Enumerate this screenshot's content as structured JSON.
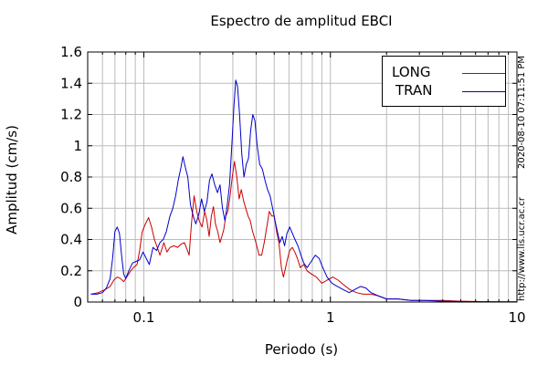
{
  "chart_data": {
    "type": "line",
    "title": "Espectro de amplitud EBCI",
    "xlabel": "Periodo (s)",
    "ylabel": "Amplitud (cm/s)",
    "xscale": "log",
    "xlim": [
      0.05,
      10
    ],
    "ylim": [
      0,
      1.6
    ],
    "xticks": [
      {
        "value": 0.1,
        "label": "0.1"
      },
      {
        "value": 1,
        "label": "1"
      },
      {
        "value": 10,
        "label": "10"
      }
    ],
    "yticks": [
      {
        "value": 0,
        "label": "0"
      },
      {
        "value": 0.2,
        "label": "0.2"
      },
      {
        "value": 0.4,
        "label": "0.4"
      },
      {
        "value": 0.6,
        "label": "0.6"
      },
      {
        "value": 0.8,
        "label": "0.8"
      },
      {
        "value": 1,
        "label": "1"
      },
      {
        "value": 1.2,
        "label": "1.2"
      },
      {
        "value": 1.4,
        "label": "1.4"
      },
      {
        "value": 1.6,
        "label": "1.6"
      }
    ],
    "grid": true,
    "legend_position": "top-right",
    "series": [
      {
        "name": "LONG",
        "color": "#cc0000",
        "points": [
          [
            0.052,
            0.05
          ],
          [
            0.057,
            0.06
          ],
          [
            0.062,
            0.08
          ],
          [
            0.066,
            0.1
          ],
          [
            0.069,
            0.14
          ],
          [
            0.072,
            0.16
          ],
          [
            0.075,
            0.15
          ],
          [
            0.078,
            0.13
          ],
          [
            0.081,
            0.16
          ],
          [
            0.085,
            0.2
          ],
          [
            0.088,
            0.22
          ],
          [
            0.092,
            0.24
          ],
          [
            0.095,
            0.33
          ],
          [
            0.098,
            0.45
          ],
          [
            0.102,
            0.5
          ],
          [
            0.106,
            0.54
          ],
          [
            0.11,
            0.48
          ],
          [
            0.114,
            0.4
          ],
          [
            0.118,
            0.35
          ],
          [
            0.122,
            0.3
          ],
          [
            0.128,
            0.38
          ],
          [
            0.133,
            0.32
          ],
          [
            0.138,
            0.35
          ],
          [
            0.145,
            0.36
          ],
          [
            0.152,
            0.35
          ],
          [
            0.158,
            0.37
          ],
          [
            0.165,
            0.38
          ],
          [
            0.17,
            0.34
          ],
          [
            0.175,
            0.3
          ],
          [
            0.18,
            0.5
          ],
          [
            0.186,
            0.68
          ],
          [
            0.192,
            0.58
          ],
          [
            0.198,
            0.52
          ],
          [
            0.205,
            0.48
          ],
          [
            0.212,
            0.58
          ],
          [
            0.218,
            0.52
          ],
          [
            0.224,
            0.42
          ],
          [
            0.23,
            0.55
          ],
          [
            0.236,
            0.61
          ],
          [
            0.242,
            0.5
          ],
          [
            0.249,
            0.45
          ],
          [
            0.256,
            0.38
          ],
          [
            0.262,
            0.42
          ],
          [
            0.268,
            0.46
          ],
          [
            0.275,
            0.55
          ],
          [
            0.282,
            0.58
          ],
          [
            0.29,
            0.68
          ],
          [
            0.298,
            0.8
          ],
          [
            0.306,
            0.9
          ],
          [
            0.315,
            0.8
          ],
          [
            0.324,
            0.66
          ],
          [
            0.333,
            0.72
          ],
          [
            0.342,
            0.65
          ],
          [
            0.352,
            0.6
          ],
          [
            0.362,
            0.55
          ],
          [
            0.372,
            0.52
          ],
          [
            0.383,
            0.45
          ],
          [
            0.395,
            0.4
          ],
          [
            0.405,
            0.35
          ],
          [
            0.415,
            0.3
          ],
          [
            0.428,
            0.3
          ],
          [
            0.442,
            0.38
          ],
          [
            0.456,
            0.48
          ],
          [
            0.47,
            0.58
          ],
          [
            0.485,
            0.55
          ],
          [
            0.5,
            0.55
          ],
          [
            0.515,
            0.45
          ],
          [
            0.53,
            0.38
          ],
          [
            0.546,
            0.22
          ],
          [
            0.56,
            0.16
          ],
          [
            0.575,
            0.22
          ],
          [
            0.59,
            0.28
          ],
          [
            0.605,
            0.33
          ],
          [
            0.625,
            0.35
          ],
          [
            0.645,
            0.32
          ],
          [
            0.665,
            0.28
          ],
          [
            0.69,
            0.22
          ],
          [
            0.72,
            0.24
          ],
          [
            0.75,
            0.2
          ],
          [
            0.79,
            0.18
          ],
          [
            0.84,
            0.16
          ],
          [
            0.9,
            0.12
          ],
          [
            0.96,
            0.14
          ],
          [
            1.03,
            0.16
          ],
          [
            1.1,
            0.14
          ],
          [
            1.18,
            0.11
          ],
          [
            1.27,
            0.08
          ],
          [
            1.38,
            0.06
          ],
          [
            1.5,
            0.05
          ],
          [
            1.65,
            0.05
          ],
          [
            1.8,
            0.04
          ],
          [
            2.0,
            0.02
          ],
          [
            2.3,
            0.02
          ],
          [
            2.7,
            0.01
          ],
          [
            3.2,
            0.01
          ],
          [
            4.0,
            0.01
          ],
          [
            5.0,
            0.005
          ],
          [
            6.5,
            0.003
          ],
          [
            8.0,
            0.002
          ],
          [
            10.0,
            0.001
          ]
        ]
      },
      {
        "name": "TRAN",
        "color": "#0000cc",
        "points": [
          [
            0.052,
            0.05
          ],
          [
            0.056,
            0.05
          ],
          [
            0.06,
            0.06
          ],
          [
            0.063,
            0.09
          ],
          [
            0.066,
            0.15
          ],
          [
            0.068,
            0.28
          ],
          [
            0.07,
            0.45
          ],
          [
            0.072,
            0.48
          ],
          [
            0.074,
            0.44
          ],
          [
            0.076,
            0.3
          ],
          [
            0.078,
            0.18
          ],
          [
            0.08,
            0.15
          ],
          [
            0.083,
            0.2
          ],
          [
            0.087,
            0.25
          ],
          [
            0.091,
            0.26
          ],
          [
            0.095,
            0.27
          ],
          [
            0.099,
            0.32
          ],
          [
            0.103,
            0.28
          ],
          [
            0.107,
            0.24
          ],
          [
            0.112,
            0.35
          ],
          [
            0.117,
            0.33
          ],
          [
            0.122,
            0.38
          ],
          [
            0.127,
            0.4
          ],
          [
            0.132,
            0.45
          ],
          [
            0.138,
            0.55
          ],
          [
            0.143,
            0.6
          ],
          [
            0.148,
            0.68
          ],
          [
            0.153,
            0.78
          ],
          [
            0.158,
            0.86
          ],
          [
            0.162,
            0.93
          ],
          [
            0.167,
            0.86
          ],
          [
            0.172,
            0.8
          ],
          [
            0.178,
            0.62
          ],
          [
            0.184,
            0.55
          ],
          [
            0.19,
            0.5
          ],
          [
            0.197,
            0.56
          ],
          [
            0.204,
            0.66
          ],
          [
            0.211,
            0.58
          ],
          [
            0.218,
            0.64
          ],
          [
            0.225,
            0.78
          ],
          [
            0.232,
            0.82
          ],
          [
            0.24,
            0.75
          ],
          [
            0.248,
            0.7
          ],
          [
            0.256,
            0.75
          ],
          [
            0.264,
            0.6
          ],
          [
            0.272,
            0.52
          ],
          [
            0.28,
            0.62
          ],
          [
            0.288,
            0.75
          ],
          [
            0.296,
            1.0
          ],
          [
            0.304,
            1.25
          ],
          [
            0.311,
            1.42
          ],
          [
            0.318,
            1.38
          ],
          [
            0.326,
            1.2
          ],
          [
            0.335,
            0.95
          ],
          [
            0.344,
            0.8
          ],
          [
            0.354,
            0.88
          ],
          [
            0.364,
            0.92
          ],
          [
            0.374,
            1.1
          ],
          [
            0.384,
            1.2
          ],
          [
            0.394,
            1.16
          ],
          [
            0.405,
            1.0
          ],
          [
            0.418,
            0.88
          ],
          [
            0.432,
            0.85
          ],
          [
            0.446,
            0.78
          ],
          [
            0.46,
            0.72
          ],
          [
            0.475,
            0.68
          ],
          [
            0.49,
            0.6
          ],
          [
            0.505,
            0.52
          ],
          [
            0.52,
            0.45
          ],
          [
            0.536,
            0.38
          ],
          [
            0.552,
            0.42
          ],
          [
            0.568,
            0.36
          ],
          [
            0.585,
            0.44
          ],
          [
            0.605,
            0.48
          ],
          [
            0.625,
            0.44
          ],
          [
            0.646,
            0.4
          ],
          [
            0.67,
            0.36
          ],
          [
            0.695,
            0.3
          ],
          [
            0.72,
            0.25
          ],
          [
            0.75,
            0.22
          ],
          [
            0.79,
            0.26
          ],
          [
            0.83,
            0.3
          ],
          [
            0.87,
            0.28
          ],
          [
            0.91,
            0.22
          ],
          [
            0.96,
            0.16
          ],
          [
            1.02,
            0.12
          ],
          [
            1.09,
            0.1
          ],
          [
            1.17,
            0.08
          ],
          [
            1.26,
            0.06
          ],
          [
            1.35,
            0.08
          ],
          [
            1.45,
            0.1
          ],
          [
            1.55,
            0.09
          ],
          [
            1.65,
            0.06
          ],
          [
            1.8,
            0.04
          ],
          [
            2.0,
            0.02
          ],
          [
            2.3,
            0.02
          ],
          [
            2.7,
            0.01
          ],
          [
            3.2,
            0.01
          ],
          [
            4.0,
            0.005
          ],
          [
            5.0,
            0.003
          ],
          [
            6.5,
            0.002
          ],
          [
            8.0,
            0.001
          ],
          [
            10.0,
            0.001
          ]
        ]
      }
    ]
  },
  "side_text": {
    "timestamp": "2020-08-10 07:11:51 PM",
    "url": "http://www.lis.ucr.ac.cr"
  }
}
